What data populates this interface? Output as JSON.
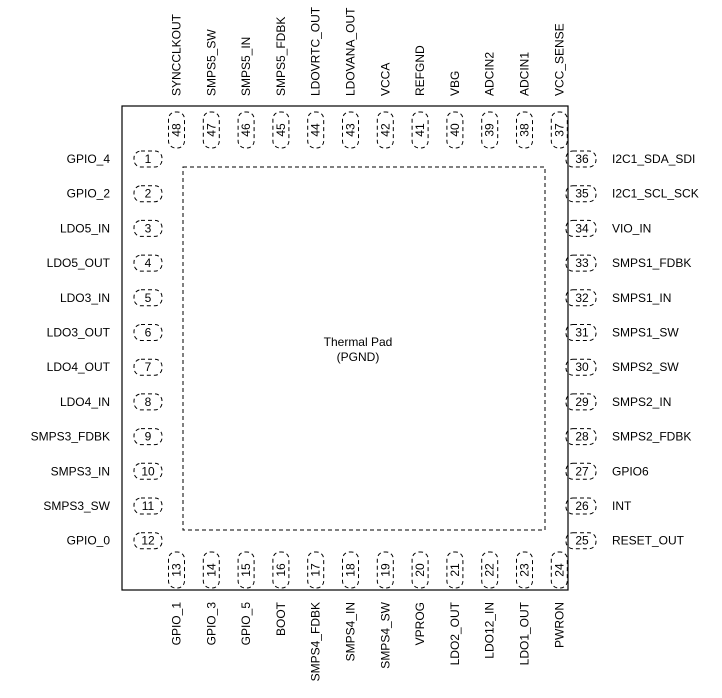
{
  "thermal_pad": {
    "line1": "Thermal Pad",
    "line2": "(PGND)"
  },
  "pins": {
    "left": [
      {
        "num": "1",
        "name": "GPIO_4"
      },
      {
        "num": "2",
        "name": "GPIO_2"
      },
      {
        "num": "3",
        "name": "LDO5_IN"
      },
      {
        "num": "4",
        "name": "LDO5_OUT"
      },
      {
        "num": "5",
        "name": "LDO3_IN"
      },
      {
        "num": "6",
        "name": "LDO3_OUT"
      },
      {
        "num": "7",
        "name": "LDO4_OUT"
      },
      {
        "num": "8",
        "name": "LDO4_IN"
      },
      {
        "num": "9",
        "name": "SMPS3_FDBK"
      },
      {
        "num": "10",
        "name": "SMPS3_IN"
      },
      {
        "num": "11",
        "name": "SMPS3_SW"
      },
      {
        "num": "12",
        "name": "GPIO_0"
      }
    ],
    "bottom": [
      {
        "num": "13",
        "name": "GPIO_1"
      },
      {
        "num": "14",
        "name": "GPIO_3"
      },
      {
        "num": "15",
        "name": "GPIO_5"
      },
      {
        "num": "16",
        "name": "BOOT"
      },
      {
        "num": "17",
        "name": "SMPS4_FDBK"
      },
      {
        "num": "18",
        "name": "SMPS4_IN"
      },
      {
        "num": "19",
        "name": "SMPS4_SW"
      },
      {
        "num": "20",
        "name": "VPROG"
      },
      {
        "num": "21",
        "name": "LDO2_OUT"
      },
      {
        "num": "22",
        "name": "LDO12_IN"
      },
      {
        "num": "23",
        "name": "LDO1_OUT"
      },
      {
        "num": "24",
        "name": "PWRON"
      }
    ],
    "right": [
      {
        "num": "25",
        "name": "RESET_OUT"
      },
      {
        "num": "26",
        "name": "INT"
      },
      {
        "num": "27",
        "name": "GPIO6"
      },
      {
        "num": "28",
        "name": "SMPS2_FDBK"
      },
      {
        "num": "29",
        "name": "SMPS2_IN"
      },
      {
        "num": "30",
        "name": "SMPS2_SW"
      },
      {
        "num": "31",
        "name": "SMPS1_SW"
      },
      {
        "num": "32",
        "name": "SMPS1_IN"
      },
      {
        "num": "33",
        "name": "SMPS1_FDBK"
      },
      {
        "num": "34",
        "name": "VIO_IN"
      },
      {
        "num": "35",
        "name": "I2C1_SCL_SCK"
      },
      {
        "num": "36",
        "name": "I2C1_SDA_SDI"
      }
    ],
    "top": [
      {
        "num": "37",
        "name": "VCC_SENSE"
      },
      {
        "num": "38",
        "name": "ADCIN1"
      },
      {
        "num": "39",
        "name": "ADCIN2"
      },
      {
        "num": "40",
        "name": "VBG"
      },
      {
        "num": "41",
        "name": "REFGND"
      },
      {
        "num": "42",
        "name": "VCCA"
      },
      {
        "num": "43",
        "name": "LDOVANA_OUT"
      },
      {
        "num": "44",
        "name": "LDOVRTC_OUT"
      },
      {
        "num": "45",
        "name": "SMPS5_FDBK"
      },
      {
        "num": "46",
        "name": "SMPS5_IN"
      },
      {
        "num": "47",
        "name": "SMPS5_SW"
      },
      {
        "num": "48",
        "name": "SYNCCLKOUT"
      }
    ]
  }
}
